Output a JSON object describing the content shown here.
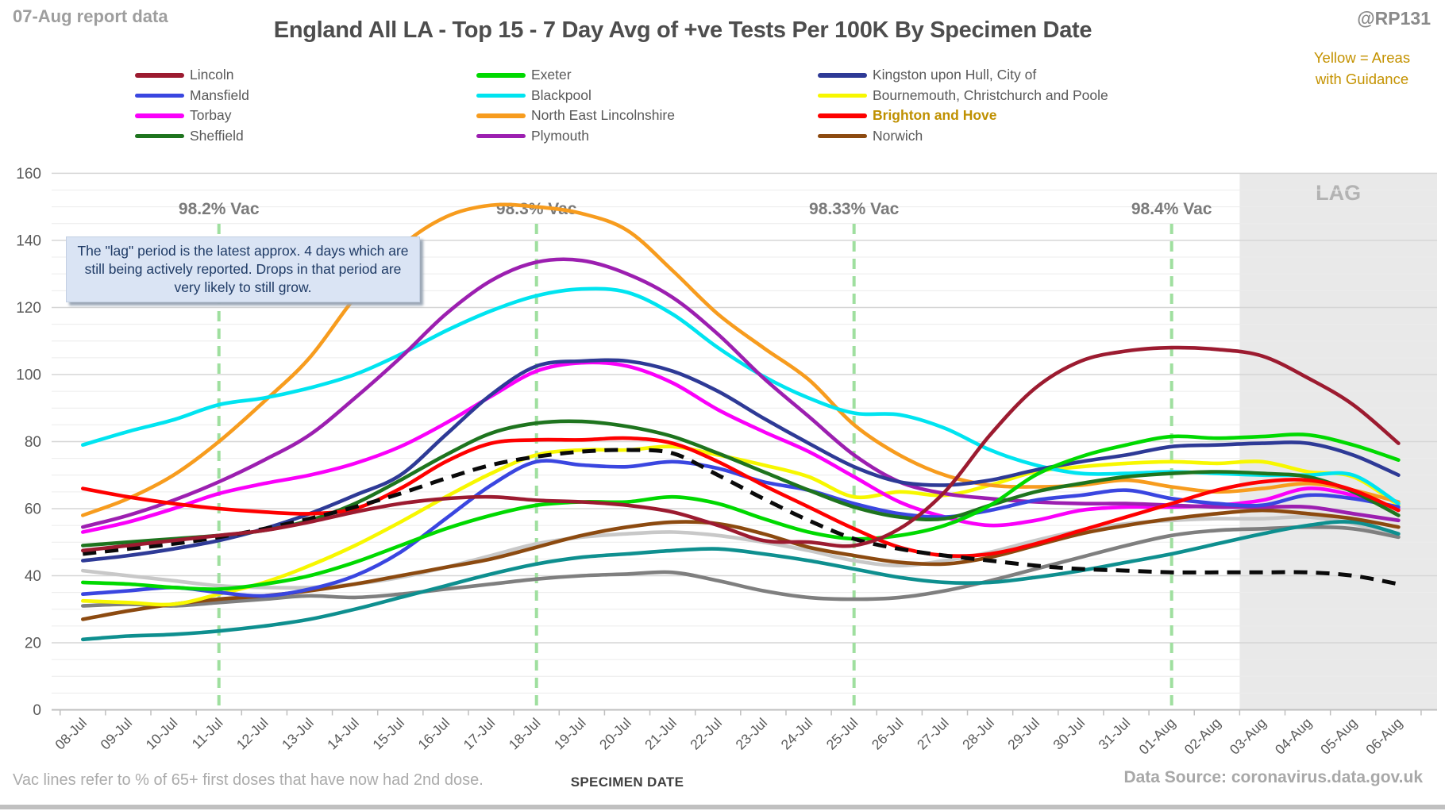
{
  "header": {
    "report_note": "07-Aug report data",
    "title": "England All LA - Top 15 - 7 Day Avg of +ve Tests Per 100K By Specimen Date",
    "handle": "@RP131",
    "guidance_note": "Yellow = Areas\nwith Guidance"
  },
  "annotations": {
    "lag_label": "LAG",
    "lag_note": "The \"lag\" period is the latest approx. 4 days which are still being actively reported. Drops in that period are very likely to still grow.",
    "vac_line_color": "#9fdf9f",
    "vac_markers": [
      {
        "label": "98.2% Vac",
        "date": "11-Jul",
        "date_index": 3
      },
      {
        "label": "98.3% Vac",
        "date": "18-Jul",
        "date_index": 10
      },
      {
        "label": "98.33% Vac",
        "date": "25-Jul",
        "date_index": 17
      },
      {
        "label": "98.4% Vac",
        "date": "01-Aug",
        "date_index": 24
      }
    ]
  },
  "footer": {
    "left": "Vac lines refer to % of 65+ first doses that have now had 2nd dose.",
    "center": "SPECIMEN DATE",
    "right": "Data Source: coronavirus.data.gov.uk"
  },
  "chart_data": {
    "type": "line",
    "title": "England All LA - Top 15 - 7 Day Avg of +ve Tests Per 100K By Specimen Date",
    "xlabel": "SPECIMEN DATE",
    "ylabel": "",
    "ylim": [
      0,
      160
    ],
    "yticks": [
      0,
      20,
      40,
      60,
      80,
      100,
      120,
      140,
      160
    ],
    "minor_grid_interval": 5,
    "grid": true,
    "legend_position": "top",
    "x": [
      "08-Jul",
      "09-Jul",
      "10-Jul",
      "11-Jul",
      "12-Jul",
      "13-Jul",
      "14-Jul",
      "15-Jul",
      "16-Jul",
      "17-Jul",
      "18-Jul",
      "19-Jul",
      "20-Jul",
      "21-Jul",
      "22-Jul",
      "23-Jul",
      "24-Jul",
      "25-Jul",
      "26-Jul",
      "27-Jul",
      "28-Jul",
      "29-Jul",
      "30-Jul",
      "31-Jul",
      "01-Aug",
      "02-Aug",
      "03-Aug",
      "04-Aug",
      "05-Aug",
      "06-Aug"
    ],
    "lag_region": {
      "start_between": [
        "02-Aug",
        "03-Aug"
      ],
      "label": "LAG"
    },
    "legend_columns": [
      [
        "Lincoln",
        "Mansfield",
        "Torbay",
        "Sheffield"
      ],
      [
        "Exeter",
        "Blackpool",
        "North East Lincolnshire",
        "Plymouth"
      ],
      [
        "Kingston upon Hull, City of",
        "Bournemouth, Christchurch and Poole",
        "Brighton and Hove",
        "Norwich"
      ]
    ],
    "series": [
      {
        "name": "Lincoln",
        "color": "#9c1b30",
        "in_legend": true,
        "values": [
          47.5,
          49,
          50.5,
          52,
          53.5,
          56,
          59,
          61.5,
          63,
          63.5,
          62.5,
          62,
          61,
          59,
          55,
          50.5,
          50,
          49,
          54,
          65,
          82,
          96,
          104,
          107,
          108,
          107.5,
          105.5,
          99,
          91,
          79.5
        ]
      },
      {
        "name": "Mansfield",
        "color": "#3a46e0",
        "in_legend": true,
        "values": [
          34.5,
          35.5,
          36.5,
          35,
          34,
          36,
          40,
          47,
          57,
          67,
          74,
          73,
          72.5,
          74,
          72,
          68,
          65.5,
          61.5,
          58.5,
          57.5,
          59.5,
          62.5,
          64,
          65.5,
          63,
          61.5,
          61,
          64,
          63,
          60.5
        ]
      },
      {
        "name": "Torbay",
        "color": "#fa00fa",
        "in_legend": true,
        "values": [
          53,
          56,
          60,
          64.5,
          67.5,
          70,
          73.5,
          78.5,
          85.5,
          93.5,
          101,
          103.5,
          102.5,
          97.5,
          89.5,
          83,
          77,
          69.5,
          62,
          57.5,
          55,
          56.5,
          59.5,
          60.5,
          60.5,
          61,
          62.5,
          66,
          64,
          60
        ]
      },
      {
        "name": "Sheffield",
        "color": "#1e741e",
        "in_legend": true,
        "values": [
          49,
          50,
          51,
          52,
          53.5,
          56.5,
          61.5,
          68.5,
          76,
          82.5,
          85.5,
          86,
          84.5,
          81.5,
          76.5,
          71,
          65.5,
          60.5,
          57.5,
          57,
          61,
          65,
          67.5,
          69.5,
          70.5,
          71,
          70.5,
          69.5,
          65,
          58
        ]
      },
      {
        "name": "Exeter",
        "color": "#00d900",
        "in_legend": true,
        "values": [
          38,
          37.5,
          36.5,
          36,
          37.5,
          40,
          44,
          49,
          54,
          58,
          61,
          62,
          62,
          63.5,
          61.5,
          57,
          53,
          51,
          52,
          55,
          61,
          70,
          75.5,
          79,
          81.5,
          81,
          81.5,
          82,
          79,
          74.5
        ]
      },
      {
        "name": "Blackpool",
        "color": "#00e4f0",
        "in_legend": true,
        "values": [
          79,
          83,
          86.5,
          91,
          93,
          96,
          100,
          106,
          113,
          119,
          123.5,
          125.5,
          124.5,
          118,
          108,
          99.5,
          93,
          88.5,
          88,
          84,
          77.5,
          73,
          70.5,
          70.5,
          71,
          70.5,
          70,
          70,
          70,
          61.5
        ]
      },
      {
        "name": "North East Lincolnshire",
        "color": "#f79c1e",
        "in_legend": true,
        "values": [
          58,
          63,
          70,
          80,
          92,
          105,
          123,
          138,
          147,
          150.5,
          150,
          148,
          143,
          131,
          118,
          108,
          98.5,
          85,
          76,
          70,
          67,
          66.5,
          67,
          68.5,
          66.5,
          65,
          66,
          67.5,
          65.5,
          62
        ]
      },
      {
        "name": "Plymouth",
        "color": "#9c1fb0",
        "in_legend": true,
        "values": [
          54.5,
          58,
          62.5,
          68,
          74.5,
          82,
          93,
          105,
          118,
          128,
          133.5,
          134,
          130,
          123,
          112,
          99,
          87.5,
          76,
          68,
          64.5,
          63,
          62,
          61.5,
          61.5,
          61,
          60.5,
          60.5,
          60.5,
          58.5,
          56.5
        ]
      },
      {
        "name": "Kingston upon Hull, City of",
        "color": "#2e3a96",
        "in_legend": true,
        "values": [
          44.5,
          46,
          48,
          50.5,
          54,
          58.5,
          64,
          70,
          82,
          94,
          102.5,
          104,
          104,
          101,
          95,
          87,
          79.5,
          72.5,
          68,
          67,
          68.5,
          71.5,
          74,
          76,
          78.5,
          79,
          79.5,
          79.5,
          76,
          70
        ]
      },
      {
        "name": "Bournemouth, Christchurch and Poole",
        "color": "#f7f700",
        "in_legend": true,
        "values": [
          32.5,
          32,
          31.5,
          34.5,
          38,
          43,
          49,
          56,
          63.5,
          70.5,
          76,
          77.5,
          77.5,
          78.5,
          76,
          73,
          69.5,
          63.5,
          65,
          64,
          67,
          71,
          72.5,
          73.5,
          74,
          73.5,
          74,
          71,
          69.5,
          61
        ]
      },
      {
        "name": "Brighton and Hove",
        "color": "#fe0000",
        "in_legend": true,
        "label_gold": true,
        "values": [
          66,
          63.5,
          61.5,
          60,
          59,
          58.5,
          60,
          66,
          74,
          79.5,
          80.5,
          80.5,
          81,
          79.5,
          74,
          67,
          60.5,
          54,
          48.5,
          46,
          46.5,
          49.5,
          53.5,
          57.5,
          61.5,
          65.5,
          68,
          68.5,
          65.5,
          59.5
        ]
      },
      {
        "name": "Norwich",
        "color": "#8c4a10",
        "in_legend": true,
        "values": [
          27,
          29.5,
          31.5,
          33,
          34,
          35.5,
          37.5,
          40,
          42.5,
          45,
          48.5,
          52,
          54.5,
          56,
          55.5,
          52.5,
          48.5,
          46,
          44,
          43.5,
          45.5,
          49,
          52.5,
          55,
          57,
          58.5,
          59.5,
          58.5,
          57,
          54.5
        ]
      },
      {
        "name": "unlabelled-silver",
        "color": "#c8c8c8",
        "in_legend": false,
        "values": [
          41.5,
          40,
          38.5,
          37,
          36.5,
          36.5,
          37.5,
          39.5,
          42.5,
          46,
          49.5,
          51.5,
          52.5,
          53,
          52,
          50,
          47.5,
          44.5,
          43,
          44.5,
          47,
          50.5,
          53.5,
          55.5,
          56.5,
          57,
          57,
          57.5,
          55.5,
          52
        ]
      },
      {
        "name": "unlabelled-gray",
        "color": "#7f7f7f",
        "in_legend": false,
        "values": [
          31,
          31.5,
          31,
          32,
          33,
          34,
          33.5,
          34.5,
          36,
          37.5,
          39,
          40,
          40.5,
          41,
          38.5,
          35.5,
          33.5,
          33,
          33.5,
          35.5,
          38.5,
          42,
          45.5,
          49,
          52,
          53.5,
          54,
          54.5,
          54,
          51.5
        ]
      },
      {
        "name": "unlabelled-teal",
        "color": "#0e8f8f",
        "in_legend": false,
        "values": [
          21,
          22,
          22.5,
          23.5,
          25,
          27,
          30,
          33.5,
          37,
          40.5,
          43.5,
          45.5,
          46.5,
          47.5,
          48,
          46.5,
          44.5,
          42,
          39.5,
          38,
          38,
          39.5,
          41.5,
          44,
          46.5,
          49.5,
          52.5,
          55,
          56,
          52.5
        ]
      },
      {
        "name": "unlabelled-england-average",
        "color": "#0a0a0a",
        "dash": true,
        "in_legend": false,
        "values": [
          46.5,
          48,
          49.5,
          51.5,
          54,
          57,
          60.5,
          64.5,
          69,
          73,
          75.5,
          77,
          77.5,
          76.5,
          70,
          63,
          56.5,
          51,
          48,
          46,
          44.5,
          43,
          42,
          41.5,
          41,
          41,
          41,
          41,
          40,
          37.5
        ]
      }
    ],
    "z_order": [
      "unlabelled-silver",
      "unlabelled-gray",
      "unlabelled-teal",
      "Norwich",
      "Bournemouth, Christchurch and Poole",
      "North East Lincolnshire",
      "Blackpool",
      "Torbay",
      "Plymouth",
      "Kingston upon Hull, City of",
      "Mansfield",
      "Sheffield",
      "Exeter",
      "Brighton and Hove",
      "unlabelled-england-average",
      "Lincoln"
    ]
  }
}
